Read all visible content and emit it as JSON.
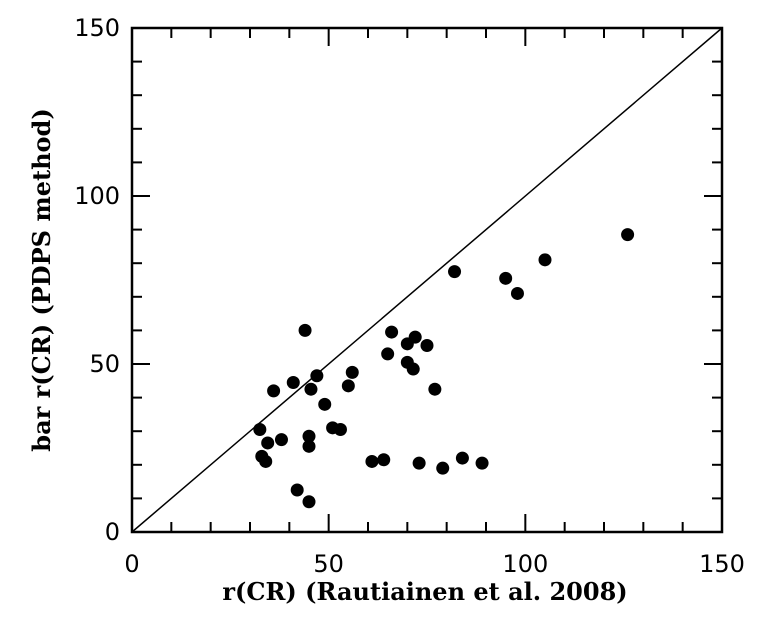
{
  "chart_data": {
    "type": "scatter",
    "title": "",
    "xlabel": "r(CR) (Rautiainen et al. 2008)",
    "ylabel": "bar r(CR) (PDPS method)",
    "xlim": [
      0,
      150
    ],
    "ylim": [
      0,
      150
    ],
    "xticks": [
      "0",
      "50",
      "100",
      "150"
    ],
    "yticks": [
      "0",
      "50",
      "100",
      "150"
    ],
    "grid": false,
    "legend": "none",
    "reference_line": "y = x",
    "points": [
      {
        "x": 32.5,
        "y": 30.5
      },
      {
        "x": 33,
        "y": 22.5
      },
      {
        "x": 34,
        "y": 21
      },
      {
        "x": 34.5,
        "y": 26.5
      },
      {
        "x": 36,
        "y": 42
      },
      {
        "x": 38,
        "y": 27.5
      },
      {
        "x": 41,
        "y": 44.5
      },
      {
        "x": 42,
        "y": 12.5
      },
      {
        "x": 44,
        "y": 60
      },
      {
        "x": 45,
        "y": 28.5
      },
      {
        "x": 45,
        "y": 25.5
      },
      {
        "x": 45,
        "y": 9
      },
      {
        "x": 45.5,
        "y": 42.5
      },
      {
        "x": 47,
        "y": 46.5
      },
      {
        "x": 49,
        "y": 38
      },
      {
        "x": 51,
        "y": 31
      },
      {
        "x": 53,
        "y": 30.5
      },
      {
        "x": 55,
        "y": 43.5
      },
      {
        "x": 56,
        "y": 47.5
      },
      {
        "x": 61,
        "y": 21
      },
      {
        "x": 64,
        "y": 21.5
      },
      {
        "x": 65,
        "y": 53
      },
      {
        "x": 66,
        "y": 59.5
      },
      {
        "x": 70,
        "y": 50.5
      },
      {
        "x": 70,
        "y": 56
      },
      {
        "x": 71.5,
        "y": 48.5
      },
      {
        "x": 72,
        "y": 58
      },
      {
        "x": 73,
        "y": 20.5
      },
      {
        "x": 75,
        "y": 55.5
      },
      {
        "x": 77,
        "y": 42.5
      },
      {
        "x": 79,
        "y": 19
      },
      {
        "x": 82,
        "y": 77.5
      },
      {
        "x": 84,
        "y": 22
      },
      {
        "x": 89,
        "y": 20.5
      },
      {
        "x": 95,
        "y": 75.5
      },
      {
        "x": 98,
        "y": 71
      },
      {
        "x": 105,
        "y": 81
      },
      {
        "x": 126,
        "y": 88.5
      }
    ]
  }
}
